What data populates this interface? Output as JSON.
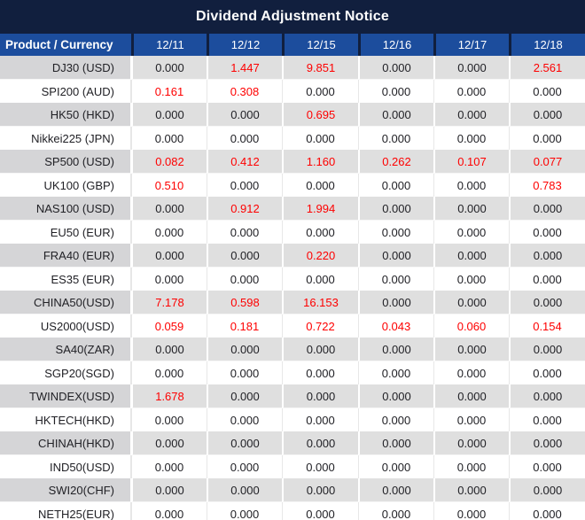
{
  "title": "Dividend Adjustment Notice",
  "colors": {
    "title_bar_bg": "#111f3e",
    "header_row_bg": "#1c4d9d",
    "header_text": "#ffffff",
    "gray_row_bg": "#dfdfdf",
    "gray_row_product_bg": "#d5d5d7",
    "white_row_bg": "#ffffff",
    "value_text": "#212126",
    "red_value": "#fe0000"
  },
  "table": {
    "product_header": "Product / Currency",
    "date_headers": [
      "12/11",
      "12/12",
      "12/15",
      "12/16",
      "12/17",
      "12/18"
    ],
    "rows": [
      {
        "product": "DJ30 (USD)",
        "values": [
          "0.000",
          "1.447",
          "9.851",
          "0.000",
          "0.000",
          "2.561"
        ],
        "red": [
          false,
          true,
          true,
          false,
          false,
          true
        ]
      },
      {
        "product": "SPI200 (AUD)",
        "values": [
          "0.161",
          "0.308",
          "0.000",
          "0.000",
          "0.000",
          "0.000"
        ],
        "red": [
          true,
          true,
          false,
          false,
          false,
          false
        ]
      },
      {
        "product": "HK50 (HKD)",
        "values": [
          "0.000",
          "0.000",
          "0.695",
          "0.000",
          "0.000",
          "0.000"
        ],
        "red": [
          false,
          false,
          true,
          false,
          false,
          false
        ]
      },
      {
        "product": "Nikkei225 (JPN)",
        "values": [
          "0.000",
          "0.000",
          "0.000",
          "0.000",
          "0.000",
          "0.000"
        ],
        "red": [
          false,
          false,
          false,
          false,
          false,
          false
        ]
      },
      {
        "product": "SP500 (USD)",
        "values": [
          "0.082",
          "0.412",
          "1.160",
          "0.262",
          "0.107",
          "0.077"
        ],
        "red": [
          true,
          true,
          true,
          true,
          true,
          true
        ]
      },
      {
        "product": "UK100 (GBP)",
        "values": [
          "0.510",
          "0.000",
          "0.000",
          "0.000",
          "0.000",
          "0.783"
        ],
        "red": [
          true,
          false,
          false,
          false,
          false,
          true
        ]
      },
      {
        "product": "NAS100 (USD)",
        "values": [
          "0.000",
          "0.912",
          "1.994",
          "0.000",
          "0.000",
          "0.000"
        ],
        "red": [
          false,
          true,
          true,
          false,
          false,
          false
        ]
      },
      {
        "product": "EU50 (EUR)",
        "values": [
          "0.000",
          "0.000",
          "0.000",
          "0.000",
          "0.000",
          "0.000"
        ],
        "red": [
          false,
          false,
          false,
          false,
          false,
          false
        ]
      },
      {
        "product": "FRA40 (EUR)",
        "values": [
          "0.000",
          "0.000",
          "0.220",
          "0.000",
          "0.000",
          "0.000"
        ],
        "red": [
          false,
          false,
          true,
          false,
          false,
          false
        ]
      },
      {
        "product": "ES35 (EUR)",
        "values": [
          "0.000",
          "0.000",
          "0.000",
          "0.000",
          "0.000",
          "0.000"
        ],
        "red": [
          false,
          false,
          false,
          false,
          false,
          false
        ]
      },
      {
        "product": "CHINA50(USD)",
        "values": [
          "7.178",
          "0.598",
          "16.153",
          "0.000",
          "0.000",
          "0.000"
        ],
        "red": [
          true,
          true,
          true,
          false,
          false,
          false
        ]
      },
      {
        "product": "US2000(USD)",
        "values": [
          "0.059",
          "0.181",
          "0.722",
          "0.043",
          "0.060",
          "0.154"
        ],
        "red": [
          true,
          true,
          true,
          true,
          true,
          true
        ]
      },
      {
        "product": "SA40(ZAR)",
        "values": [
          "0.000",
          "0.000",
          "0.000",
          "0.000",
          "0.000",
          "0.000"
        ],
        "red": [
          false,
          false,
          false,
          false,
          false,
          false
        ]
      },
      {
        "product": "SGP20(SGD)",
        "values": [
          "0.000",
          "0.000",
          "0.000",
          "0.000",
          "0.000",
          "0.000"
        ],
        "red": [
          false,
          false,
          false,
          false,
          false,
          false
        ]
      },
      {
        "product": "TWINDEX(USD)",
        "values": [
          "1.678",
          "0.000",
          "0.000",
          "0.000",
          "0.000",
          "0.000"
        ],
        "red": [
          true,
          false,
          false,
          false,
          false,
          false
        ]
      },
      {
        "product": "HKTECH(HKD)",
        "values": [
          "0.000",
          "0.000",
          "0.000",
          "0.000",
          "0.000",
          "0.000"
        ],
        "red": [
          false,
          false,
          false,
          false,
          false,
          false
        ]
      },
      {
        "product": "CHINAH(HKD)",
        "values": [
          "0.000",
          "0.000",
          "0.000",
          "0.000",
          "0.000",
          "0.000"
        ],
        "red": [
          false,
          false,
          false,
          false,
          false,
          false
        ]
      },
      {
        "product": "IND50(USD)",
        "values": [
          "0.000",
          "0.000",
          "0.000",
          "0.000",
          "0.000",
          "0.000"
        ],
        "red": [
          false,
          false,
          false,
          false,
          false,
          false
        ]
      },
      {
        "product": "SWI20(CHF)",
        "values": [
          "0.000",
          "0.000",
          "0.000",
          "0.000",
          "0.000",
          "0.000"
        ],
        "red": [
          false,
          false,
          false,
          false,
          false,
          false
        ]
      },
      {
        "product": "NETH25(EUR)",
        "values": [
          "0.000",
          "0.000",
          "0.000",
          "0.000",
          "0.000",
          "0.000"
        ],
        "red": [
          false,
          false,
          false,
          false,
          false,
          false
        ]
      }
    ]
  }
}
